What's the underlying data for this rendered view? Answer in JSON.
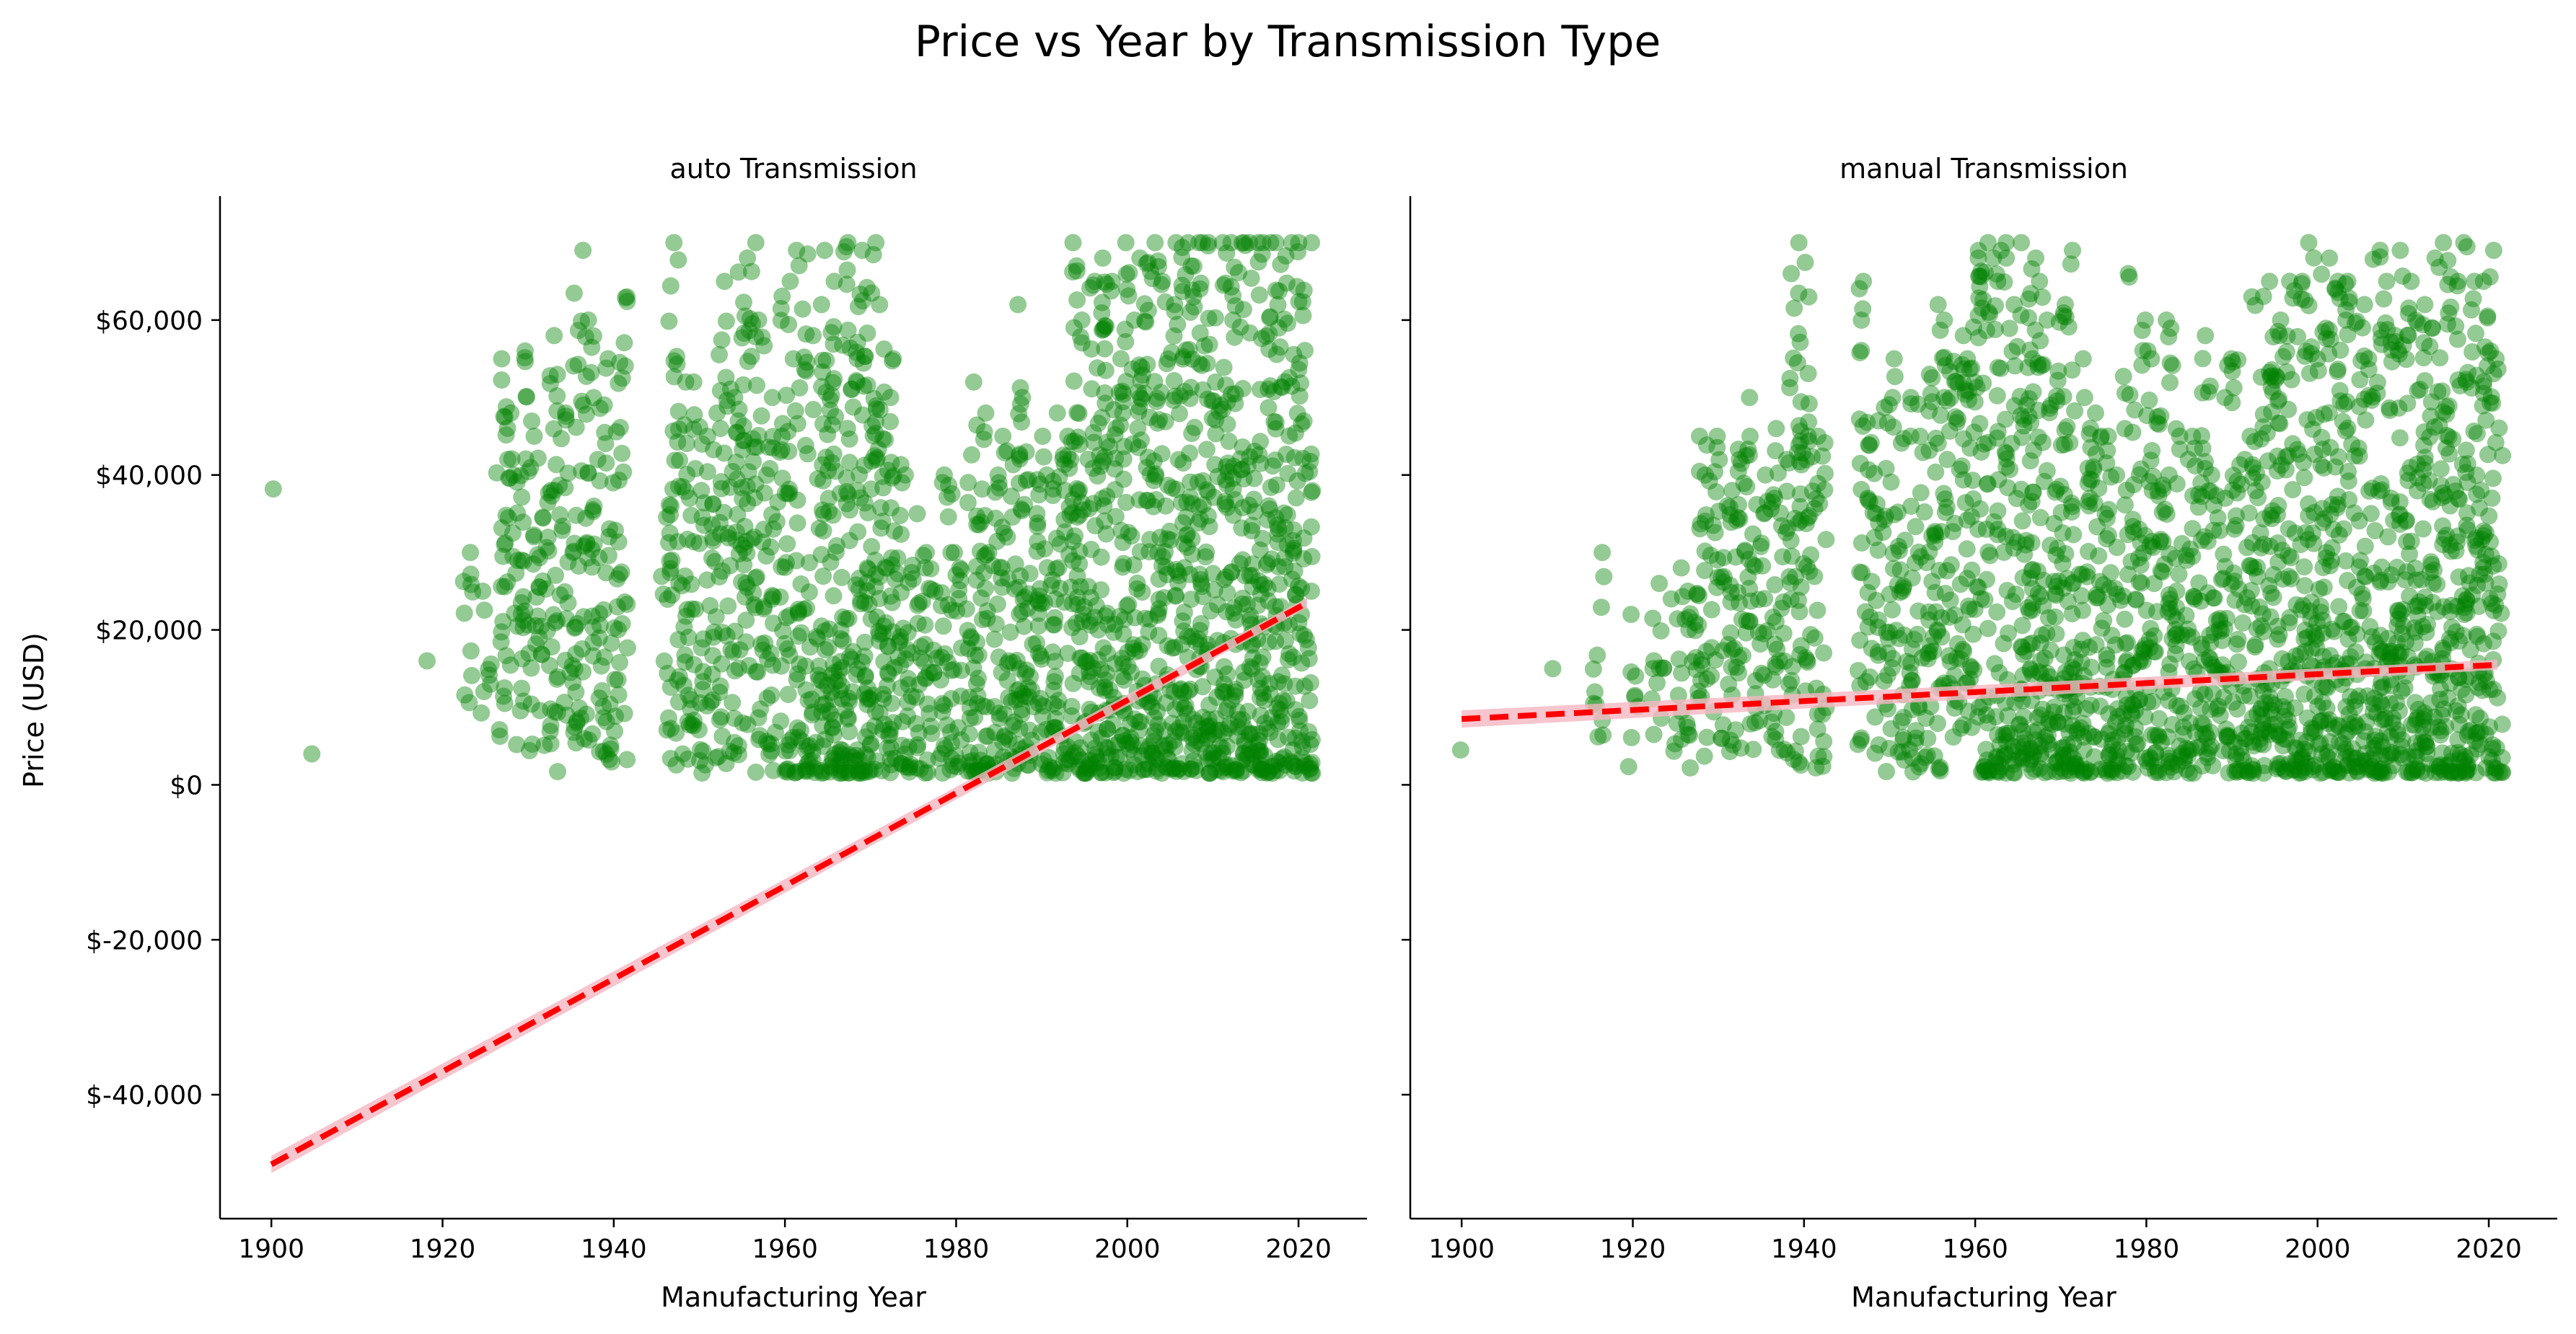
{
  "chart_data": {
    "type": "scatter",
    "title": "Price vs Year by Transmission Type",
    "ylabel": "Price (USD)",
    "ylim": [
      -56000,
      76000
    ],
    "yticks": [
      -40000,
      -20000,
      0,
      20000,
      40000,
      60000
    ],
    "ytick_labels": [
      "$-40,000",
      "$-20,000",
      "$0",
      "$20,000",
      "$40,000",
      "$60,000"
    ],
    "xticks": [
      1900,
      1920,
      1940,
      1960,
      1980,
      2000,
      2020
    ],
    "xtick_labels": [
      "1900",
      "1920",
      "1940",
      "1960",
      "1980",
      "2000",
      "2020"
    ],
    "shared_y": true,
    "grid": false,
    "colors": {
      "points": "#008000",
      "trend": "#ff0000",
      "band": "#f4b6c2"
    },
    "panels": [
      {
        "title": "auto Transmission",
        "xlabel": "Manufacturing Year",
        "xlim": [
          1894,
          2028
        ],
        "scatter": {
          "x": [
            1900,
            1905,
            1918,
            1923,
            1925,
            1927,
            1928,
            1929,
            1930,
            1931,
            1932,
            1933,
            1934,
            1935,
            1936,
            1937,
            1938,
            1939,
            1940,
            1941,
            1946,
            1947,
            1948,
            1949,
            1950,
            1951,
            1952,
            1953,
            1954,
            1955,
            1956,
            1957,
            1958,
            1959,
            1960,
            1961,
            1962,
            1963,
            1964,
            1965,
            1966,
            1967,
            1968,
            1969,
            1970,
            1971,
            1972,
            1973,
            1974,
            1975,
            1976,
            1977,
            1978,
            1979,
            1980,
            1981,
            1982,
            1983,
            1984,
            1985,
            1986,
            1987,
            1988,
            1989,
            1990,
            1991,
            1992,
            1993,
            1994,
            1995,
            1996,
            1997,
            1998,
            1999,
            2000,
            2001,
            2002,
            2003,
            2004,
            2005,
            2006,
            2007,
            2008,
            2009,
            2010,
            2011,
            2012,
            2013,
            2014,
            2015,
            2016,
            2017,
            2018,
            2019,
            2020,
            2021
          ],
          "y": [
            38200,
            4000,
            16000,
            30000,
            25000,
            55000,
            48000,
            40000,
            56000,
            45000,
            38000,
            58000,
            48000,
            30000,
            69000,
            60000,
            42000,
            55000,
            39000,
            63000,
            36000,
            70000,
            52000,
            37000,
            52000,
            45000,
            48000,
            65000,
            50000,
            68000,
            70000,
            60000,
            50000,
            45000,
            65000,
            55000,
            69000,
            58000,
            62000,
            69000,
            65000,
            70000,
            55000,
            69000,
            70000,
            62000,
            55000,
            50000,
            40000,
            35000,
            30000,
            28000,
            25000,
            40000,
            30000,
            28000,
            52000,
            48000,
            30000,
            40000,
            45000,
            62000,
            50000,
            35000,
            45000,
            40000,
            48000,
            45000,
            70000,
            60000,
            65000,
            68000,
            65000,
            55000,
            70000,
            60000,
            68000,
            70000,
            65000,
            62000,
            70000,
            70000,
            70000,
            70000,
            70000,
            70000,
            70000,
            70000,
            70000,
            70000,
            70000,
            70000,
            70000,
            70000,
            70000,
            70000
          ],
          "y_low": [
            38200,
            4000,
            16000,
            6000,
            6000,
            6000,
            5000,
            5000,
            4000,
            4000,
            4000,
            3000,
            1500,
            4000,
            3000,
            4000,
            4000,
            3000,
            2000,
            2000,
            3000,
            3000,
            2000,
            2000,
            1500,
            1500,
            1500,
            1500,
            1500,
            1500,
            1500,
            1500,
            1500,
            1500,
            1500,
            1500,
            1500,
            1500,
            1500,
            1500,
            1500,
            1500,
            1500,
            1500,
            1500,
            1500,
            1500,
            1500,
            1500,
            1500,
            1500,
            1500,
            1500,
            1500,
            1500,
            1500,
            1500,
            1500,
            1500,
            1500,
            1500,
            1500,
            1500,
            1500,
            1500,
            1500,
            1500,
            1500,
            1500,
            1500,
            1500,
            1500,
            1500,
            1500,
            1500,
            1500,
            1500,
            1500,
            1500,
            1500,
            1500,
            1500,
            1500,
            1500,
            1500,
            1500,
            1500,
            1500,
            1500,
            1500,
            1500,
            1500,
            1500,
            1500,
            1500,
            1500
          ]
        },
        "trend": {
          "x": [
            1900,
            2021
          ],
          "y": [
            -49000,
            23500
          ]
        }
      },
      {
        "title": "manual Transmission",
        "xlabel": "Manufacturing Year",
        "xlim": [
          1894,
          2028
        ],
        "scatter": {
          "x": [
            1900,
            1910,
            1915,
            1916,
            1920,
            1922,
            1923,
            1925,
            1926,
            1927,
            1928,
            1929,
            1930,
            1931,
            1932,
            1933,
            1934,
            1935,
            1936,
            1937,
            1938,
            1939,
            1940,
            1941,
            1942,
            1947,
            1948,
            1949,
            1950,
            1951,
            1952,
            1953,
            1954,
            1955,
            1956,
            1957,
            1958,
            1959,
            1960,
            1961,
            1962,
            1963,
            1964,
            1965,
            1966,
            1967,
            1968,
            1969,
            1970,
            1971,
            1972,
            1973,
            1974,
            1975,
            1976,
            1977,
            1978,
            1979,
            1980,
            1981,
            1982,
            1983,
            1984,
            1985,
            1986,
            1987,
            1988,
            1989,
            1990,
            1991,
            1992,
            1993,
            1994,
            1995,
            1996,
            1997,
            1998,
            1999,
            2000,
            2001,
            2002,
            2003,
            2004,
            2005,
            2006,
            2007,
            2008,
            2009,
            2010,
            2011,
            2012,
            2013,
            2014,
            2015,
            2016,
            2017,
            2018,
            2019,
            2020,
            2021
          ],
          "y": [
            4500,
            15000,
            12000,
            30000,
            22000,
            16000,
            26000,
            24000,
            28000,
            25000,
            45000,
            40000,
            45000,
            38000,
            42000,
            50000,
            45000,
            35000,
            40000,
            46000,
            42000,
            66000,
            70000,
            45000,
            45000,
            65000,
            47000,
            35000,
            50000,
            55000,
            45000,
            50000,
            45000,
            53000,
            62000,
            60000,
            58000,
            55000,
            68000,
            70000,
            68000,
            70000,
            68000,
            62000,
            70000,
            68000,
            65000,
            60000,
            62000,
            69000,
            55000,
            50000,
            48000,
            45000,
            45000,
            40000,
            66000,
            40000,
            60000,
            55000,
            40000,
            60000,
            45000,
            42000,
            45000,
            58000,
            40000,
            50000,
            55000,
            42000,
            45000,
            63000,
            65000,
            60000,
            58000,
            65000,
            65000,
            70000,
            55000,
            68000,
            65000,
            65000,
            60000,
            62000,
            55000,
            69000,
            65000,
            58000,
            69000,
            65000,
            60000,
            62000,
            68000,
            70000,
            65000,
            70000,
            65000,
            65000,
            69000,
            55000
          ],
          "y_low": [
            4500,
            15000,
            12000,
            5000,
            1000,
            6000,
            6000,
            3000,
            4000,
            1500,
            3000,
            3000,
            4000,
            4000,
            5000,
            4000,
            3000,
            3000,
            5000,
            4000,
            3000,
            2000,
            4000,
            2000,
            2000,
            3000,
            1500,
            1500,
            1500,
            1500,
            1500,
            1500,
            1500,
            1500,
            1500,
            1500,
            1500,
            1500,
            1500,
            1500,
            1500,
            1500,
            1500,
            1500,
            1500,
            1500,
            1500,
            1500,
            1500,
            1500,
            1500,
            1500,
            1500,
            1500,
            1500,
            1500,
            1500,
            1500,
            1500,
            1500,
            1500,
            1500,
            1500,
            1500,
            1500,
            1500,
            1500,
            1500,
            1500,
            1500,
            1500,
            1500,
            1500,
            1500,
            1500,
            1500,
            1500,
            1500,
            1500,
            1500,
            1500,
            1500,
            1500,
            1500,
            1500,
            1500,
            1500,
            1500,
            1500,
            1500,
            1500,
            1500,
            1500,
            1500,
            1500,
            1500,
            1500,
            1500,
            1500,
            1500
          ]
        },
        "trend": {
          "x": [
            1900,
            2021
          ],
          "y": [
            8500,
            15500
          ]
        }
      }
    ]
  }
}
